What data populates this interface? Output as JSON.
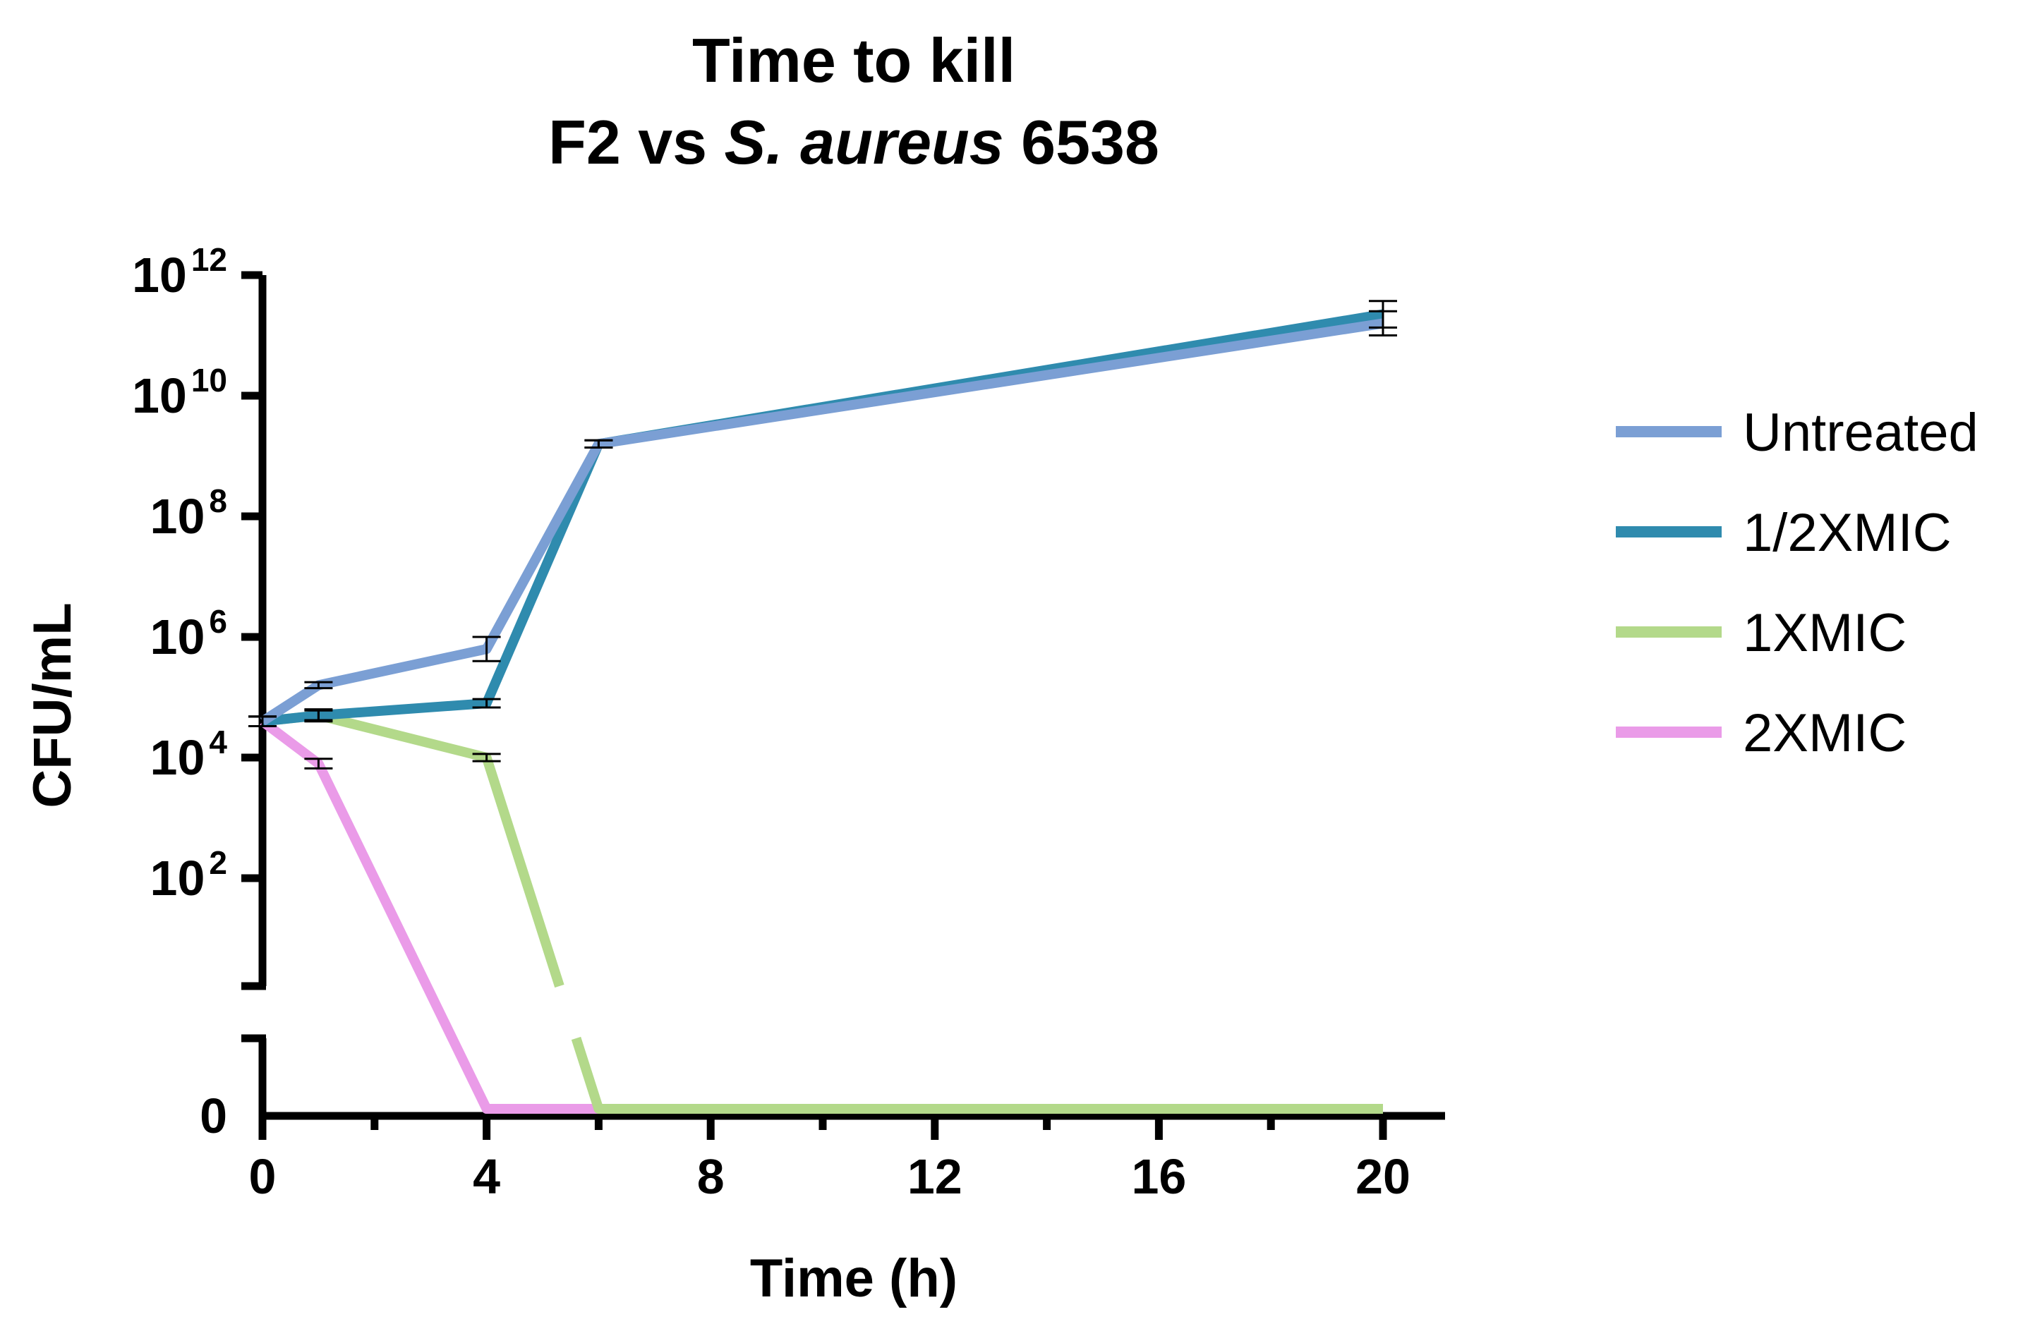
{
  "chart_data": {
    "type": "line",
    "title": {
      "line1": "Time to kill",
      "line2_prefix": "F2 vs ",
      "line2_italic": "S. aureus",
      "line2_suffix": " 6538"
    },
    "xlabel": "Time (h)",
    "ylabel": "CFU/mL",
    "y_scale": "log10 with broken axis; 0 shown below the break",
    "xlim": [
      0,
      21
    ],
    "ylim_log10": [
      0,
      12
    ],
    "x_ticks": [
      0,
      4,
      8,
      12,
      16,
      20
    ],
    "x_tick_labels": [
      "0",
      "4",
      "8",
      "12",
      "16",
      "20"
    ],
    "y_ticks_log10": [
      2,
      4,
      6,
      8,
      10,
      12
    ],
    "y_tick_labels": [
      {
        "base": "10",
        "exp": "2"
      },
      {
        "base": "10",
        "exp": "4"
      },
      {
        "base": "10",
        "exp": "6"
      },
      {
        "base": "10",
        "exp": "8"
      },
      {
        "base": "10",
        "exp": "10"
      },
      {
        "base": "10",
        "exp": "12"
      }
    ],
    "zero_label": "0",
    "legend_position": "right",
    "series": [
      {
        "name": "Untreated",
        "color": "#7b9fd4",
        "x": [
          0,
          1,
          4,
          6,
          20
        ],
        "y_log10": [
          4.6,
          5.2,
          5.8,
          9.2,
          11.2
        ],
        "err_log10": [
          0.08,
          0.05,
          0.2,
          0.06,
          0.2
        ]
      },
      {
        "name": "1/2XMIC",
        "color": "#2f8bae",
        "x": [
          0,
          1,
          4,
          6,
          20
        ],
        "y_log10": [
          4.6,
          4.7,
          4.9,
          9.2,
          11.35
        ],
        "err_log10": [
          0.08,
          0.1,
          0.07,
          0.06,
          0.22
        ]
      },
      {
        "name": "1XMIC",
        "color": "#b3d98a",
        "x": [
          0,
          1,
          4,
          6,
          20
        ],
        "y_log10": [
          4.6,
          4.7,
          4.0,
          "zero",
          "zero"
        ],
        "err_log10": [
          0.08,
          0.08,
          0.06,
          0,
          0
        ]
      },
      {
        "name": "2XMIC",
        "color": "#ea9be8",
        "x": [
          0,
          1,
          4,
          6,
          20
        ],
        "y_log10": [
          4.6,
          3.9,
          "zero",
          "zero",
          "zero"
        ],
        "err_log10": [
          0.08,
          0.08,
          0,
          0,
          0
        ]
      }
    ]
  }
}
